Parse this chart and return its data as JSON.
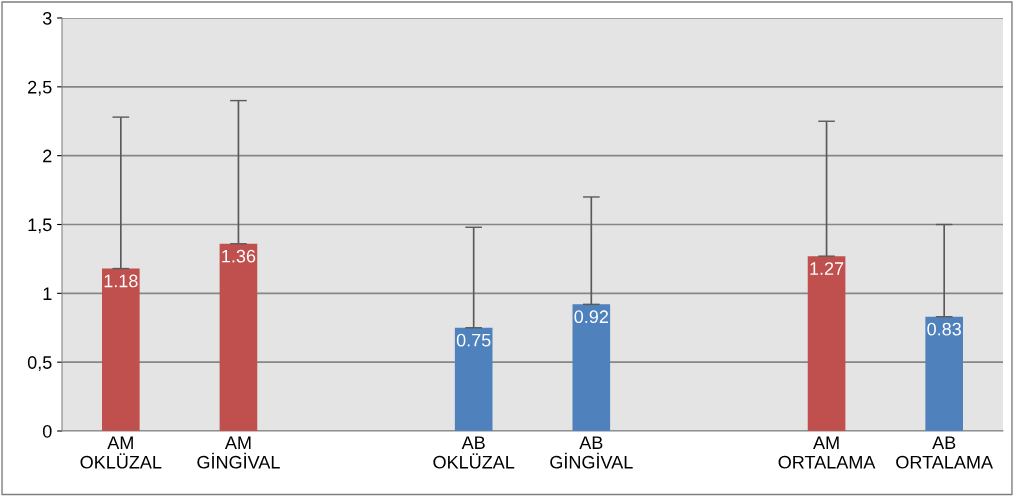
{
  "chart_data": {
    "type": "bar",
    "categories": [
      "AM\nOKLÜZAL",
      "AM\nGİNGİVAL",
      null,
      "AB\nOKLÜZAL",
      "AB\nGİNGİVAL",
      null,
      "AM\nORTALAMA",
      "AB\nORTALAMA"
    ],
    "values": [
      1.18,
      1.36,
      null,
      0.75,
      0.92,
      null,
      1.27,
      0.83
    ],
    "colors": [
      "#c0504d",
      "#c0504d",
      null,
      "#4f81bd",
      "#4f81bd",
      null,
      "#c0504d",
      "#4f81bd"
    ],
    "errors": [
      [
        1.18,
        2.28
      ],
      [
        1.36,
        2.4
      ],
      null,
      [
        0.75,
        1.48
      ],
      [
        0.92,
        1.7
      ],
      null,
      [
        1.27,
        2.25
      ],
      [
        0.83,
        1.5
      ]
    ],
    "ylim": [
      0,
      3
    ],
    "yticks": [
      0,
      {
        "value": 0.5,
        "label": "0,5"
      },
      1,
      {
        "value": 1.5,
        "label": "1,5"
      },
      2,
      {
        "value": 2.5,
        "label": "2,5"
      },
      3
    ],
    "grid": "y",
    "data_labels": true,
    "legend": false
  }
}
